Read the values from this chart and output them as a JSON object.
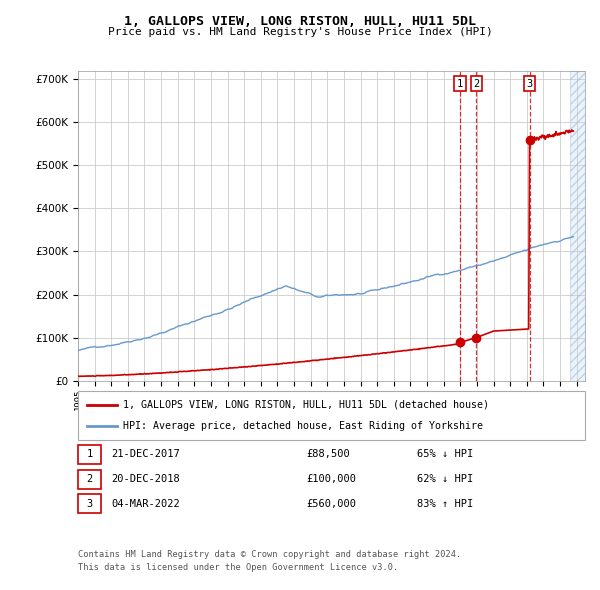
{
  "title": "1, GALLOPS VIEW, LONG RISTON, HULL, HU11 5DL",
  "subtitle": "Price paid vs. HM Land Registry's House Price Index (HPI)",
  "legend_entry1": "1, GALLOPS VIEW, LONG RISTON, HULL, HU11 5DL (detached house)",
  "legend_entry2": "HPI: Average price, detached house, East Riding of Yorkshire",
  "footnote1": "Contains HM Land Registry data © Crown copyright and database right 2024.",
  "footnote2": "This data is licensed under the Open Government Licence v3.0.",
  "transactions": [
    {
      "num": 1,
      "date": "21-DEC-2017",
      "price": 88500,
      "pct": "65%",
      "dir": "↓",
      "x_year": 2017.97
    },
    {
      "num": 2,
      "date": "20-DEC-2018",
      "price": 100000,
      "pct": "62%",
      "dir": "↓",
      "x_year": 2018.97
    },
    {
      "num": 3,
      "date": "04-MAR-2022",
      "price": 560000,
      "pct": "83%",
      "dir": "↑",
      "x_year": 2022.17
    }
  ],
  "hpi_color": "#6699cc",
  "price_color": "#cc0000",
  "vline_color": "#cc0000",
  "background_color": "#ffffff",
  "grid_color": "#cccccc",
  "future_shade_color": "#ddeeff",
  "ylim": [
    0,
    720000
  ],
  "xlim_start": 1995.0,
  "xlim_end": 2025.5,
  "future_start": 2024.58
}
